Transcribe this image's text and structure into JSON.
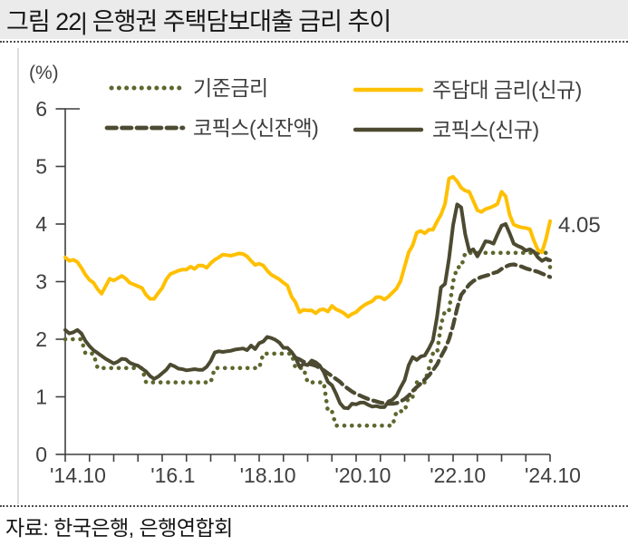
{
  "title": "그림 22| 은행권 주택담보대출 금리 추이",
  "source": "자료: 한국은행, 은행연합회",
  "colors": {
    "title_bar_bg": "#ebebeb",
    "axis": "#3f3f3f",
    "mortgage_yellow": "#FFC000",
    "cofix_olive": "#4c4a31",
    "base_rate_green": "#5d672e"
  },
  "chart_data": {
    "type": "line",
    "title": "",
    "ylabel": "(%)",
    "xlabel": "",
    "ylim": [
      0,
      6
    ],
    "grid": false,
    "legend_position": "top",
    "x_start": "2014-10",
    "x_end": "2024-10",
    "frequency": "monthly",
    "y_ticks": [
      0,
      1,
      2,
      3,
      4,
      5,
      6
    ],
    "x_tick_labels": [
      "'14.10",
      "'16.1",
      "'18.10",
      "'20.10",
      "'22.10",
      "'24.10"
    ],
    "annotation": {
      "label": "4.05",
      "series": "주담대 금리(신규)",
      "x": "2024-10",
      "value": 4.05
    },
    "series": [
      {
        "name": "기준금리",
        "color": "#5d672e",
        "line_style": "dotted",
        "values": [
          2.0,
          2.0,
          2.0,
          2.0,
          2.0,
          1.75,
          1.75,
          1.75,
          1.5,
          1.5,
          1.5,
          1.5,
          1.5,
          1.5,
          1.5,
          1.5,
          1.5,
          1.5,
          1.5,
          1.5,
          1.25,
          1.25,
          1.25,
          1.25,
          1.25,
          1.25,
          1.25,
          1.25,
          1.25,
          1.25,
          1.25,
          1.25,
          1.25,
          1.25,
          1.25,
          1.25,
          1.25,
          1.5,
          1.5,
          1.5,
          1.5,
          1.5,
          1.5,
          1.5,
          1.5,
          1.5,
          1.5,
          1.5,
          1.5,
          1.75,
          1.75,
          1.75,
          1.75,
          1.75,
          1.75,
          1.75,
          1.75,
          1.5,
          1.5,
          1.5,
          1.25,
          1.25,
          1.25,
          1.25,
          1.25,
          0.75,
          0.75,
          0.5,
          0.5,
          0.5,
          0.5,
          0.5,
          0.5,
          0.5,
          0.5,
          0.5,
          0.5,
          0.5,
          0.5,
          0.5,
          0.5,
          0.5,
          0.75,
          0.75,
          0.75,
          1.0,
          1.0,
          1.25,
          1.25,
          1.25,
          1.5,
          1.75,
          1.75,
          2.25,
          2.5,
          2.5,
          3.0,
          3.25,
          3.25,
          3.5,
          3.5,
          3.5,
          3.5,
          3.5,
          3.5,
          3.5,
          3.5,
          3.5,
          3.5,
          3.5,
          3.5,
          3.5,
          3.5,
          3.5,
          3.5,
          3.5,
          3.5,
          3.5,
          3.5,
          3.5,
          3.25
        ]
      },
      {
        "name": "주담대 금리(신규)",
        "color": "#FFC000",
        "line_style": "solid",
        "values": [
          3.42,
          3.36,
          3.38,
          3.34,
          3.24,
          3.12,
          3.03,
          2.98,
          2.87,
          2.79,
          2.92,
          3.05,
          3.02,
          3.06,
          3.1,
          3.05,
          2.98,
          2.95,
          2.92,
          2.89,
          2.77,
          2.7,
          2.7,
          2.8,
          2.89,
          3.04,
          3.13,
          3.16,
          3.19,
          3.21,
          3.21,
          3.26,
          3.22,
          3.28,
          3.28,
          3.24,
          3.32,
          3.38,
          3.42,
          3.47,
          3.46,
          3.45,
          3.47,
          3.49,
          3.48,
          3.44,
          3.36,
          3.29,
          3.31,
          3.28,
          3.19,
          3.12,
          3.08,
          3.04,
          2.98,
          2.93,
          2.74,
          2.64,
          2.47,
          2.51,
          2.5,
          2.5,
          2.45,
          2.51,
          2.52,
          2.48,
          2.58,
          2.52,
          2.49,
          2.45,
          2.39,
          2.44,
          2.47,
          2.54,
          2.59,
          2.63,
          2.66,
          2.73,
          2.73,
          2.69,
          2.74,
          2.81,
          2.88,
          3.01,
          3.26,
          3.51,
          3.63,
          3.85,
          3.88,
          3.84,
          3.9,
          3.9,
          4.04,
          4.16,
          4.35,
          4.79,
          4.82,
          4.74,
          4.63,
          4.58,
          4.56,
          4.4,
          4.24,
          4.21,
          4.26,
          4.28,
          4.31,
          4.35,
          4.56,
          4.48,
          4.16,
          3.99,
          3.96,
          3.94,
          3.93,
          3.91,
          3.71,
          3.55,
          3.51,
          3.74,
          4.05
        ]
      },
      {
        "name": "코픽스(신잔액)",
        "color": "#4c4a31",
        "line_style": "dashed",
        "values": [
          null,
          null,
          null,
          null,
          null,
          null,
          null,
          null,
          null,
          null,
          null,
          null,
          null,
          null,
          null,
          null,
          null,
          null,
          null,
          null,
          null,
          null,
          null,
          null,
          null,
          null,
          null,
          null,
          null,
          null,
          null,
          null,
          null,
          null,
          null,
          null,
          null,
          null,
          null,
          null,
          null,
          null,
          null,
          null,
          null,
          null,
          null,
          null,
          null,
          null,
          null,
          null,
          null,
          null,
          null,
          null,
          null,
          1.68,
          1.65,
          1.61,
          1.58,
          1.56,
          1.54,
          1.5,
          1.46,
          1.41,
          1.36,
          1.31,
          1.26,
          1.19,
          1.14,
          1.09,
          1.05,
          1.02,
          0.99,
          0.96,
          0.94,
          0.92,
          0.9,
          0.89,
          0.88,
          0.88,
          0.89,
          0.92,
          0.96,
          1.02,
          1.1,
          1.17,
          1.23,
          1.3,
          1.37,
          1.46,
          1.56,
          1.7,
          1.83,
          2.0,
          2.24,
          2.54,
          2.77,
          2.86,
          2.95,
          3.01,
          3.05,
          3.08,
          3.1,
          3.12,
          3.15,
          3.17,
          3.22,
          3.26,
          3.29,
          3.3,
          3.28,
          3.26,
          3.23,
          3.21,
          3.19,
          3.17,
          3.14,
          3.11,
          3.08
        ]
      },
      {
        "name": "코픽스(신규)",
        "color": "#4c4a31",
        "line_style": "solid",
        "values": [
          2.16,
          2.1,
          2.12,
          2.16,
          2.1,
          1.97,
          1.88,
          1.81,
          1.76,
          1.71,
          1.66,
          1.62,
          1.58,
          1.61,
          1.66,
          1.65,
          1.59,
          1.56,
          1.54,
          1.49,
          1.44,
          1.36,
          1.31,
          1.35,
          1.41,
          1.47,
          1.56,
          1.53,
          1.49,
          1.48,
          1.46,
          1.47,
          1.48,
          1.47,
          1.47,
          1.52,
          1.62,
          1.77,
          1.79,
          1.78,
          1.79,
          1.8,
          1.82,
          1.83,
          1.84,
          1.81,
          1.89,
          1.83,
          1.93,
          1.96,
          2.04,
          2.02,
          1.99,
          1.94,
          1.85,
          1.85,
          1.78,
          1.68,
          1.52,
          1.57,
          1.55,
          1.63,
          1.6,
          1.54,
          1.43,
          1.26,
          1.2,
          1.06,
          0.89,
          0.81,
          0.8,
          0.88,
          0.87,
          0.9,
          0.9,
          0.86,
          0.83,
          0.84,
          0.82,
          0.82,
          0.92,
          0.95,
          1.02,
          1.16,
          1.29,
          1.55,
          1.69,
          1.64,
          1.7,
          1.72,
          1.84,
          1.98,
          2.38,
          2.9,
          2.96,
          3.4,
          3.98,
          4.34,
          4.29,
          3.82,
          3.53,
          3.56,
          3.44,
          3.56,
          3.7,
          3.69,
          3.66,
          3.82,
          3.97,
          4.0,
          3.84,
          3.66,
          3.62,
          3.59,
          3.54,
          3.56,
          3.52,
          3.42,
          3.36,
          3.4,
          3.37
        ]
      }
    ]
  }
}
